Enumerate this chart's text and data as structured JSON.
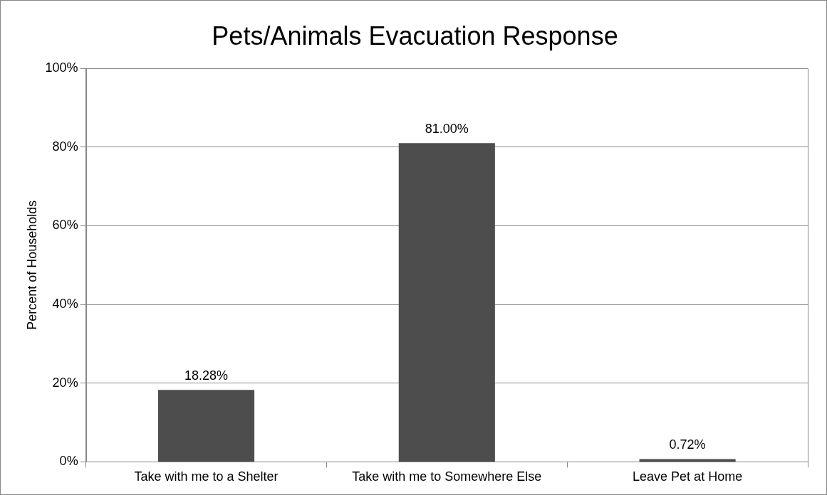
{
  "chart_data": {
    "type": "bar",
    "title": "Pets/Animals Evacuation Response",
    "ylabel": "Percent of Households",
    "categories": [
      "Take with me to a Shelter",
      "Take with me to Somewhere Else",
      "Leave Pet at Home"
    ],
    "values": [
      18.28,
      81.0,
      0.72
    ],
    "color": "#4d4d4d",
    "value_labels": [
      "18.28%",
      "81.00%",
      "0.72%"
    ],
    "ylim": [
      0,
      100
    ],
    "yticks": [
      {
        "value": 0,
        "label": "0%"
      },
      {
        "value": 20,
        "label": "20%"
      },
      {
        "value": 40,
        "label": "40%"
      },
      {
        "value": 60,
        "label": "60%"
      },
      {
        "value": 80,
        "label": "80%"
      },
      {
        "value": 100,
        "label": "100%"
      }
    ],
    "grid": "y",
    "legend": false
  }
}
